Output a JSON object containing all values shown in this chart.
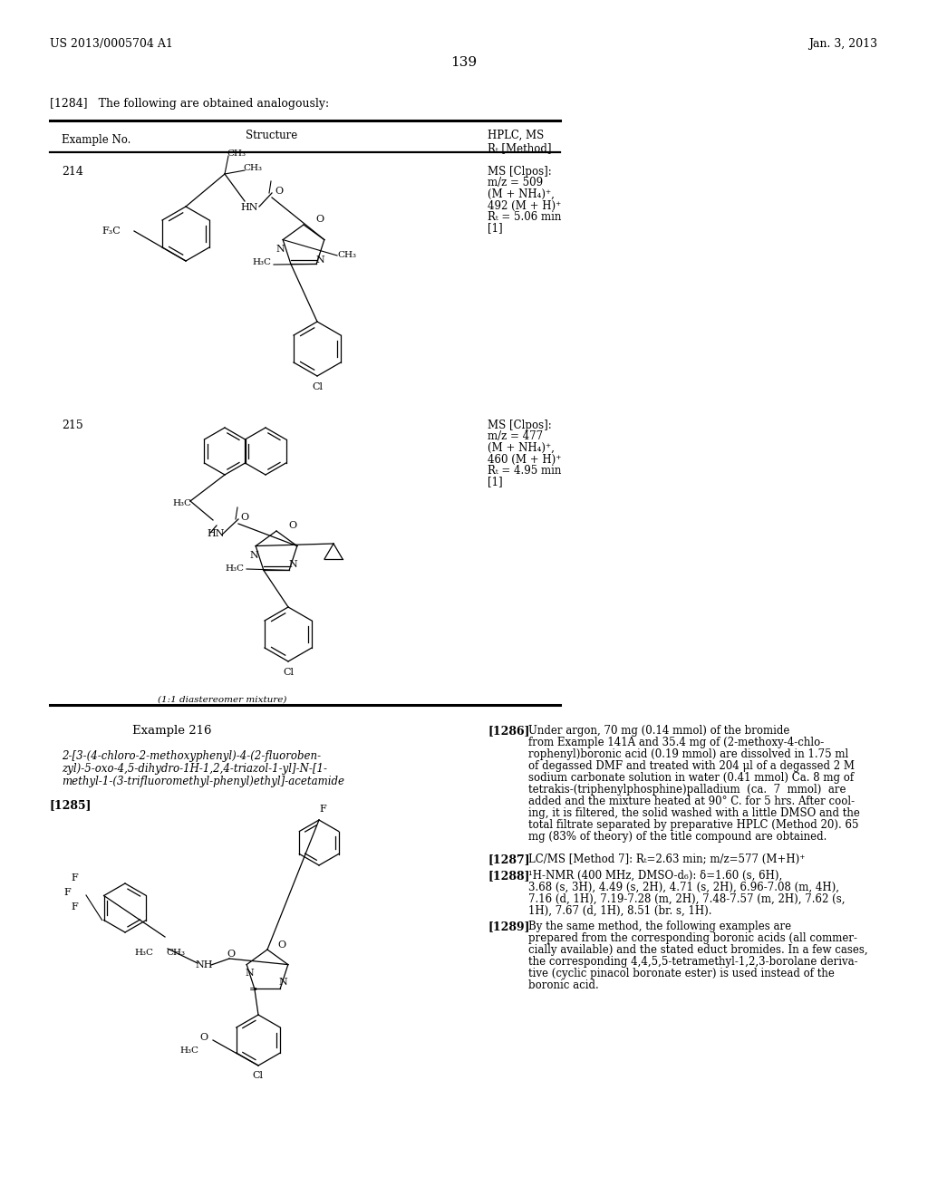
{
  "bg": "#ffffff",
  "left_header": "US 2013/0005704 A1",
  "right_header": "Jan. 3, 2013",
  "page_num": "139",
  "para_1284": "[1284]   The following are obtained analogously:",
  "col_example": "Example No.",
  "col_structure": "Structure",
  "col_hplc": "HPLC, MS",
  "col_rt": "Rₜ [Method]",
  "ex214": "214",
  "ex214_ms": [
    "MS [Clpos]:",
    "m/z = 509",
    "(M + NH₄)⁺,",
    "492 (M + H)⁺",
    "Rₜ = 5.06 min",
    "[1]"
  ],
  "ex215": "215",
  "ex215_ms": [
    "MS [Clpos]:",
    "m/z = 477",
    "(M + NH₄)⁺,",
    "460 (M + H)⁺",
    "Rₜ = 4.95 min",
    "[1]"
  ],
  "ex215_note": "(1:1 diastereomer mixture)",
  "ex216_heading": "Example 216",
  "ex216_name": [
    "2-[3-(4-chloro-2-methoxyphenyl)-4-(2-fluoroben-",
    "zyl)-5-oxo-4,5-dihydro-1H-1,2,4-triazol-1-yl]-N-[1-",
    "methyl-1-(3-trifluoromethyl-phenyl)ethyl]-acetamide"
  ],
  "p1285": "[1285]",
  "p1286": "[1286]",
  "p1286_lines": [
    "Under argon, 70 mg (0.14 mmol) of the bromide",
    "from Example 141A and 35.4 mg of (2-methoxy-4-chlo-",
    "rophenyl)boronic acid (0.19 mmol) are dissolved in 1.75 ml",
    "of degassed DMF and treated with 204 μl of a degassed 2 M",
    "sodium carbonate solution in water (0.41 mmol) Ca. 8 mg of",
    "tetrakis-(triphenylphosphine)palladium  (ca.  7  mmol)  are",
    "added and the mixture heated at 90° C. for 5 hrs. After cool-",
    "ing, it is filtered, the solid washed with a little DMSO and the",
    "total filtrate separated by preparative HPLC (Method 20). 65",
    "mg (83% of theory) of the title compound are obtained."
  ],
  "p1287": "[1287]",
  "p1287_text": "LC/MS [Method 7]: Rₜ=2.63 min; m/z=577 (M+H)⁺",
  "p1288": "[1288]",
  "p1288_lines": [
    "¹H-NMR (400 MHz, DMSO-d₆): δ=1.60 (s, 6H),",
    "3.68 (s, 3H), 4.49 (s, 2H), 4.71 (s, 2H), 6.96-7.08 (m, 4H),",
    "7.16 (d, 1H), 7.19-7.28 (m, 2H), 7.48-7.57 (m, 2H), 7.62 (s,",
    "1H), 7.67 (d, 1H), 8.51 (br. s, 1H)."
  ],
  "p1289": "[1289]",
  "p1289_lines": [
    "By the same method, the following examples are",
    "prepared from the corresponding boronic acids (all commer-",
    "cially available) and the stated educt bromides. In a few cases,",
    "the corresponding 4,4,5,5-tetramethyl-1,2,3-borolane deriva-",
    "tive (cyclic pinacol boronate ester) is used instead of the",
    "boronic acid."
  ]
}
